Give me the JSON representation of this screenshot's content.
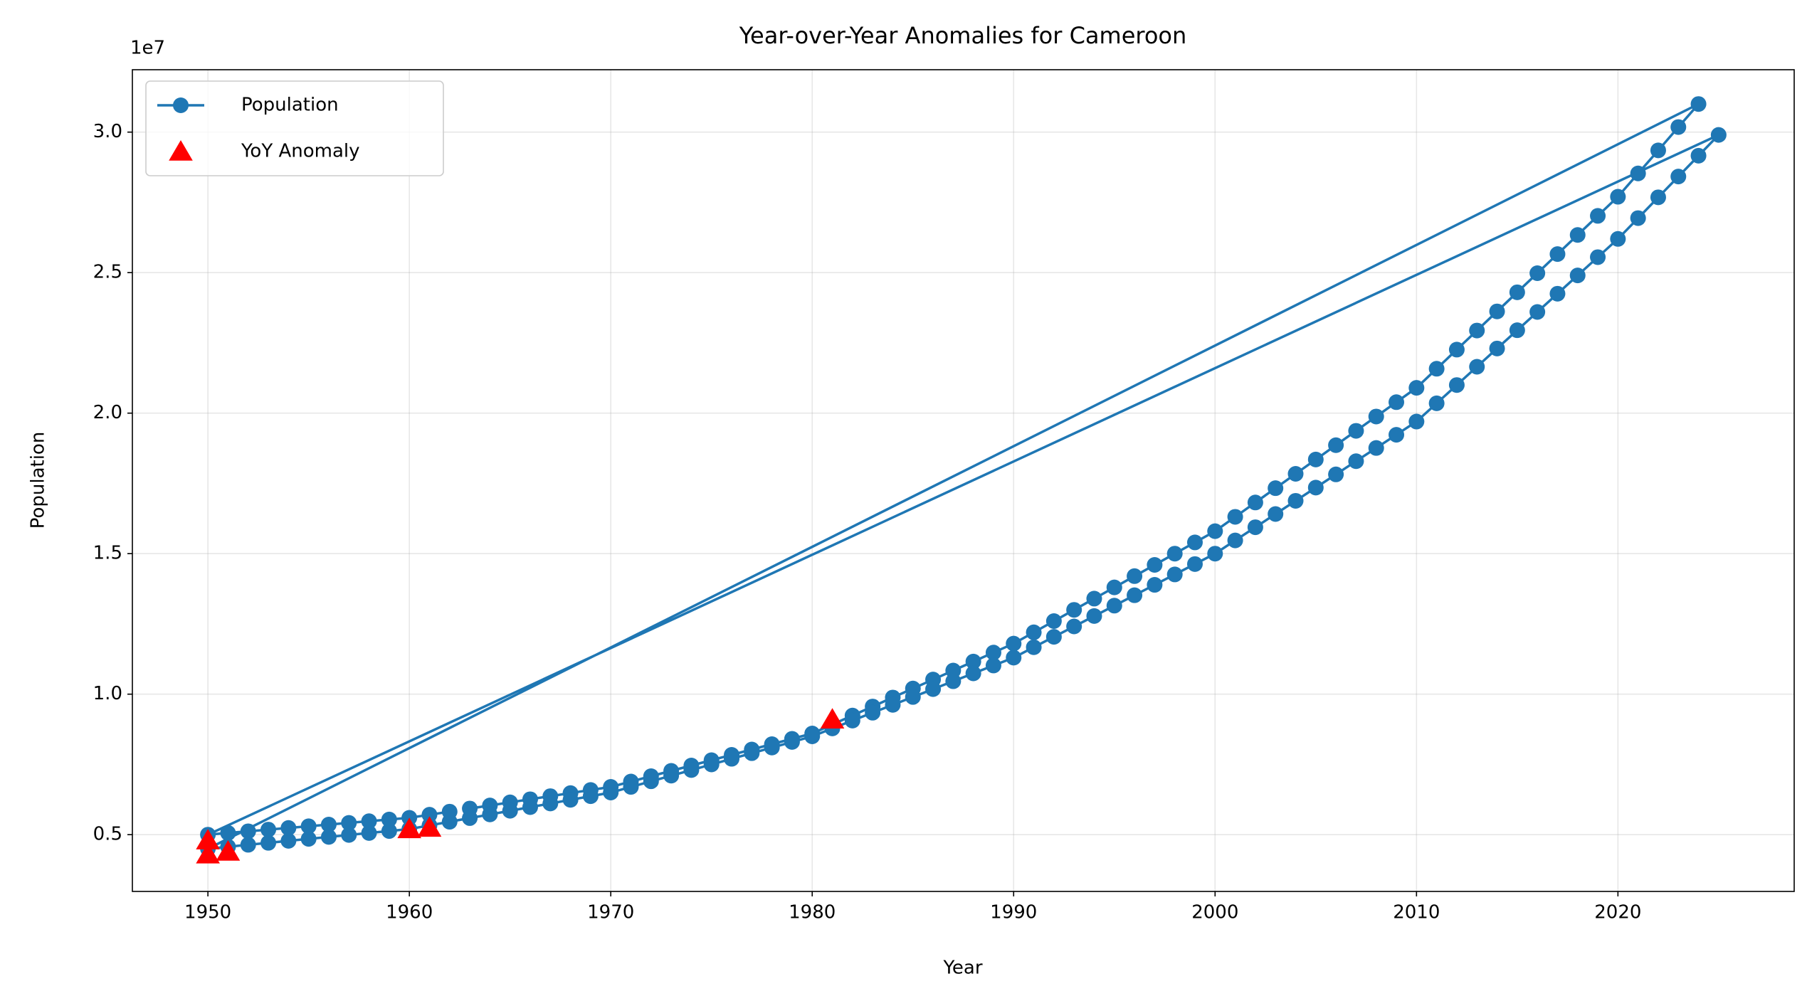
{
  "chart_data": {
    "type": "line",
    "title": "Year-over-Year Anomalies for Cameroon",
    "xlabel": "Year",
    "ylabel": "Population",
    "y_offset_label": "1e7",
    "xlim": [
      1946.25,
      2028.75
    ],
    "ylim": [
      2980000,
      32220000
    ],
    "xticks": [
      1950,
      1960,
      1970,
      1980,
      1990,
      2000,
      2010,
      2020
    ],
    "yticks": [
      {
        "value": 5000000,
        "label": "0.5"
      },
      {
        "value": 10000000,
        "label": "1.0"
      },
      {
        "value": 15000000,
        "label": "1.5"
      },
      {
        "value": 20000000,
        "label": "2.0"
      },
      {
        "value": 25000000,
        "label": "2.5"
      },
      {
        "value": 30000000,
        "label": "3.0"
      }
    ],
    "grid": true,
    "legend": "upper left",
    "series": [
      {
        "name": "Population",
        "color": "#1f77b4",
        "kind": "line",
        "x": [
          1963,
          1964,
          1965,
          1966,
          1967,
          1968,
          1969,
          1970,
          1971,
          1972,
          1973,
          1974,
          1975,
          1976,
          1977,
          1978,
          1979,
          1980,
          1981,
          1982,
          1983,
          1984,
          1985,
          1986,
          1987,
          1988,
          1989,
          1990,
          1991,
          1992,
          1993,
          1994,
          1995,
          1996,
          1997,
          1998,
          1999,
          2000,
          2001,
          2002,
          2003,
          2004,
          2005,
          2006,
          2007,
          2008,
          2009,
          2010,
          2011,
          2012,
          2013,
          2014,
          2015,
          2016,
          2017,
          2018,
          2019,
          2020,
          2021,
          2022,
          2023,
          2024,
          1950,
          1951,
          1952,
          1953,
          1954,
          1955,
          1956,
          1957,
          1958,
          1959,
          1960,
          1961,
          1962,
          1963,
          1964,
          1965,
          1966,
          1967,
          1968,
          1969,
          1970,
          1971,
          1972,
          1973,
          1974,
          1975,
          1976,
          1977,
          1978,
          1979,
          1980,
          1981,
          1982,
          1983,
          1984,
          1985,
          1986,
          1987,
          1988,
          1989,
          1990,
          1991,
          1992,
          1993,
          1994,
          1995,
          1996,
          1997,
          1998,
          1999,
          2000,
          2001,
          2002,
          2003,
          2004,
          2005,
          2006,
          2007,
          2008,
          2009,
          2010,
          2011,
          2012,
          2013,
          2014,
          2015,
          2016,
          2017,
          2018,
          2019,
          2020,
          2021,
          2022,
          2023,
          2024,
          2025,
          1950,
          1951,
          1952,
          1953,
          1954,
          1955,
          1956,
          1957,
          1958,
          1959,
          1960,
          1961,
          1962
        ],
        "values": [
          5930000,
          6040000,
          6150000,
          6260000,
          6370000,
          6480000,
          6590000,
          6700000,
          6890000,
          7080000,
          7270000,
          7460000,
          7650000,
          7840000,
          8030000,
          8220000,
          8410000,
          8600000,
          8920000,
          9240000,
          9560000,
          9880000,
          10200000,
          10520000,
          10840000,
          11160000,
          11480000,
          11800000,
          12200000,
          12600000,
          13000000,
          13400000,
          13800000,
          14200000,
          14600000,
          15000000,
          15400000,
          15800000,
          16310000,
          16820000,
          17330000,
          17840000,
          18350000,
          18860000,
          19370000,
          19880000,
          20390000,
          20900000,
          21580000,
          22260000,
          22940000,
          23620000,
          24300000,
          24980000,
          25660000,
          26340000,
          27020000,
          27700000,
          28530000,
          29350000,
          30180000,
          31000000,
          4500000,
          4570000,
          4640000,
          4710000,
          4780000,
          4850000,
          4920000,
          4990000,
          5060000,
          5130000,
          5200000,
          5330000,
          5460000,
          5590000,
          5720000,
          5850000,
          5980000,
          6110000,
          6240000,
          6370000,
          6500000,
          6700000,
          6900000,
          7100000,
          7300000,
          7500000,
          7700000,
          7900000,
          8100000,
          8300000,
          8500000,
          8780000,
          9060000,
          9340000,
          9620000,
          9900000,
          10180000,
          10460000,
          10740000,
          11020000,
          11300000,
          11670000,
          12040000,
          12410000,
          12780000,
          13150000,
          13520000,
          13890000,
          14260000,
          14630000,
          15000000,
          15470000,
          15940000,
          16410000,
          16880000,
          17350000,
          17820000,
          18290000,
          18760000,
          19230000,
          19700000,
          20350000,
          21000000,
          21650000,
          22300000,
          22950000,
          23600000,
          24250000,
          24900000,
          25550000,
          26200000,
          26940000,
          27680000,
          28420000,
          29160000,
          29900000,
          5000000,
          5060000,
          5120000,
          5180000,
          5240000,
          5300000,
          5360000,
          5420000,
          5480000,
          5540000,
          5600000,
          5710000,
          5820000
        ]
      },
      {
        "name": "YoY Anomaly",
        "color": "red",
        "kind": "scatter",
        "x": [
          1950,
          1950,
          1951,
          1960,
          1961,
          1981
        ],
        "values": [
          4800000,
          4300000,
          4400000,
          5200000,
          5250000,
          9100000
        ]
      }
    ]
  }
}
